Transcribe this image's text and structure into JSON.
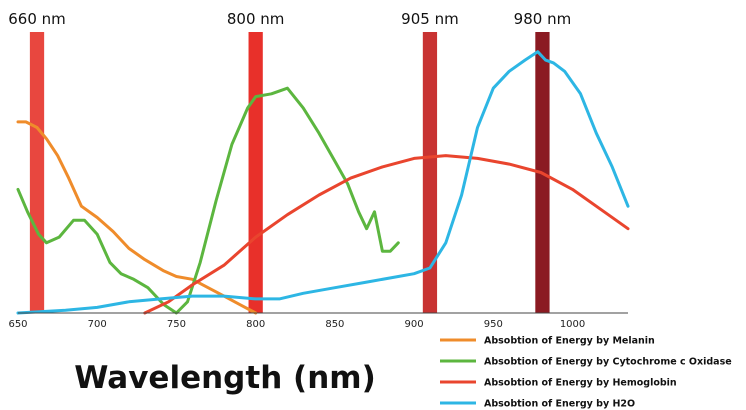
{
  "chart_data": {
    "type": "line",
    "xlabel": "Wavelength (nm)",
    "ylabel": "",
    "title": "",
    "xlim": [
      650,
      1035
    ],
    "ylim": [
      0,
      100
    ],
    "x_ticks": [
      "650",
      "700",
      "750",
      "800",
      "850",
      "900",
      "950",
      "1000"
    ],
    "grid": false,
    "legend_position": "bottom-right",
    "bands": [
      {
        "label": "660 nm",
        "center": 662,
        "width": 9,
        "color": "#e8473f"
      },
      {
        "label": "800 nm",
        "center": 800,
        "width": 9,
        "color": "#e8302a"
      },
      {
        "label": "905 nm",
        "center": 910,
        "width": 9,
        "color": "#c83332"
      },
      {
        "label": "980 nm",
        "center": 981,
        "width": 9,
        "color": "#8b1a22"
      }
    ],
    "series": [
      {
        "name": "Absobtion of Energy by Melanin",
        "color": "#ef8c2b",
        "x": [
          650,
          655,
          662,
          668,
          675,
          682,
          690,
          700,
          710,
          720,
          730,
          742,
          750,
          760,
          770,
          780,
          790,
          800
        ],
        "y": [
          68,
          68,
          66,
          62,
          56,
          48,
          38,
          34,
          29,
          23,
          19,
          15,
          13,
          12,
          9,
          6,
          3,
          0
        ]
      },
      {
        "name": "Absobtion of Energy by Cytochrome c Oxidase",
        "color": "#5cb63f",
        "x": [
          650,
          656,
          663,
          668,
          676,
          685,
          692,
          700,
          708,
          715,
          723,
          732,
          742,
          750,
          757,
          765,
          775,
          785,
          795,
          800,
          810,
          820,
          830,
          840,
          850,
          858,
          865,
          870,
          875,
          880,
          885,
          890
        ],
        "y": [
          44,
          36,
          28,
          25,
          27,
          33,
          33,
          28,
          18,
          14,
          12,
          9,
          3,
          0,
          4,
          18,
          40,
          60,
          73,
          77,
          78,
          80,
          73,
          64,
          54,
          46,
          36,
          30,
          36,
          22,
          22,
          25
        ]
      },
      {
        "name": "Absobtion of Energy by Hemoglobin",
        "color": "#e9452e",
        "x": [
          730,
          745,
          760,
          780,
          800,
          820,
          840,
          860,
          880,
          900,
          920,
          940,
          960,
          980,
          1000,
          1020,
          1035
        ],
        "y": [
          0,
          4,
          10,
          17,
          27,
          35,
          42,
          48,
          52,
          55,
          56,
          55,
          53,
          50,
          44,
          36,
          30
        ]
      },
      {
        "name": "Absobtion of Energy by H2O",
        "color": "#2db6e4",
        "x": [
          650,
          680,
          700,
          720,
          740,
          760,
          780,
          800,
          815,
          830,
          850,
          870,
          890,
          900,
          910,
          920,
          930,
          940,
          950,
          960,
          970,
          978,
          983,
          988,
          995,
          1005,
          1015,
          1025,
          1035
        ],
        "y": [
          0,
          1,
          2,
          4,
          5,
          6,
          6,
          5,
          5,
          7,
          9,
          11,
          13,
          14,
          16,
          25,
          42,
          66,
          80,
          86,
          90,
          93,
          90,
          89,
          86,
          78,
          64,
          52,
          38
        ]
      }
    ]
  }
}
